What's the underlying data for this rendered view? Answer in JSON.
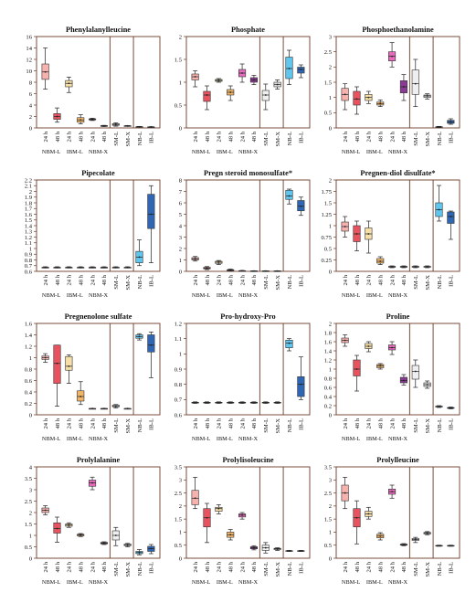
{
  "x_labels": [
    "24 h",
    "48 h",
    "24 h",
    "48 h",
    "24 h",
    "48 h",
    "SM-L",
    "SM-X",
    "NB-L",
    "IB-L"
  ],
  "group_labels": [
    "NBM-L",
    "IBM-L",
    "NBM-X"
  ],
  "colors": {
    "nbm24": "#f7b2ae",
    "nbm48": "#e8535f",
    "ibm24": "#f6dfa6",
    "ibm48": "#f2b567",
    "nbx24": "#e76bbd",
    "nbx48": "#8a3a94",
    "sml": "#efefef",
    "smx": "#dedede",
    "nbl": "#5fc6ee",
    "ibl": "#3067b5"
  },
  "chart_data": [
    {
      "type": "box",
      "title": "Phenylalanylleucine",
      "ylim": [
        0,
        16
      ],
      "yticks": [
        0,
        2,
        4,
        6,
        8,
        10,
        12,
        14,
        16
      ],
      "boxes": [
        [
          6.8,
          8.5,
          9.8,
          11.2,
          14.0
        ],
        [
          1.0,
          1.5,
          2.0,
          2.5,
          3.5
        ],
        [
          6.2,
          7.2,
          7.8,
          8.3,
          8.9
        ],
        [
          0.7,
          1.0,
          1.4,
          1.8,
          2.3
        ],
        [
          1.3,
          1.4,
          1.5,
          1.6,
          1.7
        ],
        [
          0.25,
          0.3,
          0.35,
          0.4,
          0.45
        ],
        [
          0.3,
          0.45,
          0.6,
          0.75,
          0.9
        ],
        [
          0.3,
          0.32,
          0.35,
          0.38,
          0.42
        ],
        [
          0.15,
          0.18,
          0.2,
          0.22,
          0.25
        ],
        [
          0.12,
          0.15,
          0.17,
          0.19,
          0.22
        ]
      ]
    },
    {
      "type": "box",
      "title": "Phosphate",
      "ylim": [
        0,
        2.0
      ],
      "yticks": [
        0,
        0.5,
        1.0,
        1.5,
        2.0
      ],
      "boxes": [
        [
          0.9,
          1.05,
          1.12,
          1.18,
          1.25
        ],
        [
          0.4,
          0.58,
          0.72,
          0.8,
          0.92
        ],
        [
          1.0,
          1.02,
          1.04,
          1.06,
          1.08
        ],
        [
          0.6,
          0.72,
          0.78,
          0.84,
          0.92
        ],
        [
          1.0,
          1.12,
          1.2,
          1.28,
          1.4
        ],
        [
          0.95,
          1.0,
          1.05,
          1.1,
          1.15
        ],
        [
          0.4,
          0.6,
          0.72,
          0.82,
          0.96
        ],
        [
          0.85,
          0.9,
          0.95,
          1.0,
          1.05
        ],
        [
          0.95,
          1.08,
          1.3,
          1.55,
          1.7
        ],
        [
          1.1,
          1.2,
          1.28,
          1.33,
          1.38
        ]
      ]
    },
    {
      "type": "box",
      "title": "Phosphoethanolamine",
      "ylim": [
        0,
        3.0
      ],
      "yticks": [
        0,
        0.5,
        1.0,
        1.5,
        2.0,
        2.5,
        3.0
      ],
      "boxes": [
        [
          0.6,
          0.9,
          1.1,
          1.3,
          1.45
        ],
        [
          0.45,
          0.75,
          0.95,
          1.2,
          1.35
        ],
        [
          0.8,
          0.9,
          1.0,
          1.1,
          1.2
        ],
        [
          0.7,
          0.75,
          0.8,
          0.85,
          0.92
        ],
        [
          2.0,
          2.2,
          2.35,
          2.5,
          2.8
        ],
        [
          0.9,
          1.15,
          1.35,
          1.55,
          1.75
        ],
        [
          0.7,
          1.1,
          1.45,
          1.9,
          2.25
        ],
        [
          0.95,
          1.0,
          1.05,
          1.08,
          1.12
        ],
        [
          0.01,
          0.02,
          0.03,
          0.04,
          0.05
        ],
        [
          0.12,
          0.15,
          0.2,
          0.25,
          0.3
        ]
      ]
    },
    {
      "type": "box",
      "title": "Pipecolate",
      "ylim": [
        0.6,
        2.2
      ],
      "yticks": [
        0.6,
        0.7,
        0.8,
        0.9,
        1.0,
        1.1,
        1.2,
        1.3,
        1.4,
        1.5,
        1.6,
        1.7,
        1.8,
        1.9,
        2.0,
        2.1,
        2.2
      ],
      "boxes": [
        [
          0.66,
          0.67,
          0.67,
          0.67,
          0.68
        ],
        [
          0.66,
          0.67,
          0.67,
          0.67,
          0.68
        ],
        [
          0.66,
          0.67,
          0.67,
          0.67,
          0.68
        ],
        [
          0.66,
          0.67,
          0.67,
          0.67,
          0.68
        ],
        [
          0.66,
          0.67,
          0.67,
          0.67,
          0.68
        ],
        [
          0.66,
          0.67,
          0.67,
          0.67,
          0.68
        ],
        [
          0.66,
          0.67,
          0.67,
          0.67,
          0.68
        ],
        [
          0.66,
          0.67,
          0.67,
          0.67,
          0.68
        ],
        [
          0.7,
          0.75,
          0.85,
          0.95,
          1.15
        ],
        [
          0.75,
          1.35,
          1.6,
          1.95,
          2.1
        ]
      ]
    },
    {
      "type": "box",
      "title": "Pregn steroid monosulfate*",
      "ylim": [
        0,
        8
      ],
      "yticks": [
        0,
        1,
        2,
        3,
        4,
        5,
        6,
        7,
        8
      ],
      "boxes": [
        [
          0.9,
          1.0,
          1.1,
          1.2,
          1.3
        ],
        [
          0.15,
          0.22,
          0.28,
          0.35,
          0.42
        ],
        [
          0.6,
          0.7,
          0.8,
          0.88,
          0.95
        ],
        [
          0.02,
          0.05,
          0.1,
          0.15,
          0.2
        ],
        [
          0.02,
          0.03,
          0.05,
          0.06,
          0.08
        ],
        [
          0.01,
          0.02,
          0.03,
          0.04,
          0.05
        ],
        [
          0.01,
          0.02,
          0.03,
          0.04,
          0.05
        ],
        [
          0.01,
          0.02,
          0.03,
          0.04,
          0.05
        ],
        [
          5.9,
          6.3,
          6.6,
          7.1,
          7.2
        ],
        [
          4.9,
          5.3,
          5.7,
          6.2,
          6.5
        ]
      ]
    },
    {
      "type": "box",
      "title": "Pregnen-diol disulfate*",
      "ylim": [
        0,
        2.0
      ],
      "yticks": [
        0,
        0.25,
        0.5,
        0.75,
        1.0,
        1.25,
        1.5,
        1.75,
        2.0
      ],
      "boxes": [
        [
          0.75,
          0.88,
          0.98,
          1.08,
          1.2
        ],
        [
          0.45,
          0.65,
          0.82,
          1.0,
          1.1
        ],
        [
          0.4,
          0.7,
          0.82,
          0.95,
          1.1
        ],
        [
          0.15,
          0.18,
          0.22,
          0.28,
          0.32
        ],
        [
          0.08,
          0.09,
          0.1,
          0.11,
          0.12
        ],
        [
          0.08,
          0.09,
          0.1,
          0.11,
          0.12
        ],
        [
          0.08,
          0.09,
          0.1,
          0.11,
          0.12
        ],
        [
          0.08,
          0.09,
          0.1,
          0.11,
          0.12
        ],
        [
          1.1,
          1.2,
          1.35,
          1.5,
          1.88
        ],
        [
          0.7,
          1.05,
          1.2,
          1.3,
          1.32
        ]
      ]
    },
    {
      "type": "box",
      "title": "Pregnenolone sulfate",
      "ylim": [
        0,
        1.6
      ],
      "yticks": [
        0,
        0.2,
        0.4,
        0.6,
        0.8,
        1.0,
        1.2,
        1.4,
        1.6
      ],
      "boxes": [
        [
          0.92,
          0.97,
          1.0,
          1.03,
          1.07
        ],
        [
          0.15,
          0.55,
          0.9,
          1.22,
          1.22
        ],
        [
          0.55,
          0.78,
          0.85,
          1.02,
          1.05
        ],
        [
          0.18,
          0.24,
          0.32,
          0.42,
          0.58
        ],
        [
          0.11,
          0.11,
          0.11,
          0.11,
          0.11
        ],
        [
          0.11,
          0.11,
          0.11,
          0.11,
          0.11
        ],
        [
          0.12,
          0.14,
          0.15,
          0.17,
          0.18
        ],
        [
          0.11,
          0.11,
          0.11,
          0.11,
          0.11
        ],
        [
          1.31,
          1.34,
          1.37,
          1.4,
          1.42
        ],
        [
          0.65,
          1.1,
          1.22,
          1.4,
          1.45
        ]
      ]
    },
    {
      "type": "box",
      "title": "Pro-hydroxy-Pro",
      "ylim": [
        0.6,
        1.2
      ],
      "yticks": [
        0.6,
        0.7,
        0.8,
        0.9,
        1.0,
        1.1,
        1.2
      ],
      "boxes": [
        [
          0.675,
          0.678,
          0.68,
          0.682,
          0.685
        ],
        [
          0.675,
          0.678,
          0.68,
          0.682,
          0.685
        ],
        [
          0.675,
          0.678,
          0.68,
          0.682,
          0.685
        ],
        [
          0.675,
          0.678,
          0.68,
          0.682,
          0.685
        ],
        [
          0.675,
          0.678,
          0.68,
          0.682,
          0.685
        ],
        [
          0.675,
          0.678,
          0.68,
          0.682,
          0.685
        ],
        [
          0.675,
          0.678,
          0.68,
          0.682,
          0.685
        ],
        [
          0.675,
          0.678,
          0.68,
          0.682,
          0.685
        ],
        [
          1.02,
          1.04,
          1.07,
          1.09,
          1.1
        ],
        [
          0.7,
          0.72,
          0.8,
          0.85,
          0.98
        ]
      ]
    },
    {
      "type": "box",
      "title": "Proline",
      "ylim": [
        0,
        2.0
      ],
      "yticks": [
        0,
        0.2,
        0.4,
        0.6,
        0.8,
        1.0,
        1.2,
        1.4,
        1.6,
        1.8,
        2.0
      ],
      "boxes": [
        [
          1.5,
          1.58,
          1.63,
          1.68,
          1.75
        ],
        [
          0.52,
          0.85,
          1.0,
          1.2,
          1.3
        ],
        [
          1.38,
          1.45,
          1.5,
          1.56,
          1.6
        ],
        [
          1.0,
          1.03,
          1.07,
          1.1,
          1.12
        ],
        [
          1.32,
          1.42,
          1.47,
          1.53,
          1.6
        ],
        [
          0.65,
          0.7,
          0.75,
          0.82,
          0.88
        ],
        [
          0.6,
          0.78,
          0.95,
          1.08,
          1.2
        ],
        [
          0.58,
          0.62,
          0.66,
          0.7,
          0.74
        ],
        [
          0.16,
          0.17,
          0.18,
          0.19,
          0.2
        ],
        [
          0.13,
          0.14,
          0.15,
          0.16,
          0.17
        ]
      ]
    },
    {
      "type": "box",
      "title": "Prolylalanine",
      "ylim": [
        0,
        4.0
      ],
      "yticks": [
        0,
        0.5,
        1.0,
        1.5,
        2.0,
        2.5,
        3.0,
        3.5,
        4.0
      ],
      "boxes": [
        [
          1.9,
          2.0,
          2.1,
          2.2,
          2.3
        ],
        [
          0.7,
          1.1,
          1.3,
          1.55,
          1.8
        ],
        [
          1.35,
          1.4,
          1.45,
          1.5,
          1.55
        ],
        [
          0.95,
          0.98,
          1.02,
          1.05,
          1.08
        ],
        [
          3.0,
          3.15,
          3.3,
          3.42,
          3.55
        ],
        [
          0.6,
          0.63,
          0.66,
          0.69,
          0.72
        ],
        [
          0.55,
          0.8,
          1.0,
          1.2,
          1.35
        ],
        [
          0.5,
          0.55,
          0.58,
          0.62,
          0.65
        ],
        [
          0.15,
          0.2,
          0.25,
          0.3,
          0.38
        ],
        [
          0.2,
          0.3,
          0.42,
          0.52,
          0.6
        ]
      ]
    },
    {
      "type": "box",
      "title": "Prolylisoleucine",
      "ylim": [
        0,
        3.5
      ],
      "yticks": [
        0,
        0.5,
        1.0,
        1.5,
        2.0,
        2.5,
        3.0,
        3.5
      ],
      "boxes": [
        [
          1.9,
          2.05,
          2.3,
          2.6,
          3.1
        ],
        [
          0.6,
          1.2,
          1.55,
          1.9,
          2.1
        ],
        [
          1.7,
          1.8,
          1.9,
          1.95,
          2.05
        ],
        [
          0.7,
          0.8,
          0.9,
          1.0,
          1.1
        ],
        [
          1.5,
          1.58,
          1.65,
          1.7,
          1.75
        ],
        [
          0.32,
          0.36,
          0.4,
          0.44,
          0.48
        ],
        [
          0.2,
          0.3,
          0.4,
          0.5,
          0.6
        ],
        [
          0.3,
          0.33,
          0.36,
          0.38,
          0.4
        ],
        [
          0.26,
          0.27,
          0.28,
          0.29,
          0.3
        ],
        [
          0.26,
          0.27,
          0.28,
          0.29,
          0.3
        ]
      ]
    },
    {
      "type": "box",
      "title": "Prolylleucine",
      "ylim": [
        0,
        3.5
      ],
      "yticks": [
        0,
        0.5,
        1.0,
        1.5,
        2.0,
        2.5,
        3.0,
        3.5
      ],
      "boxes": [
        [
          1.9,
          2.2,
          2.5,
          2.8,
          3.1
        ],
        [
          0.55,
          1.2,
          1.55,
          1.9,
          2.2
        ],
        [
          1.5,
          1.6,
          1.7,
          1.8,
          1.95
        ],
        [
          0.7,
          0.78,
          0.85,
          0.92,
          0.98
        ],
        [
          2.3,
          2.45,
          2.55,
          2.65,
          2.8
        ],
        [
          0.48,
          0.5,
          0.52,
          0.54,
          0.56
        ],
        [
          0.6,
          0.68,
          0.72,
          0.76,
          0.8
        ],
        [
          0.9,
          0.93,
          0.96,
          0.99,
          1.02
        ],
        [
          0.46,
          0.47,
          0.48,
          0.49,
          0.5
        ],
        [
          0.46,
          0.47,
          0.48,
          0.49,
          0.5
        ]
      ]
    }
  ]
}
